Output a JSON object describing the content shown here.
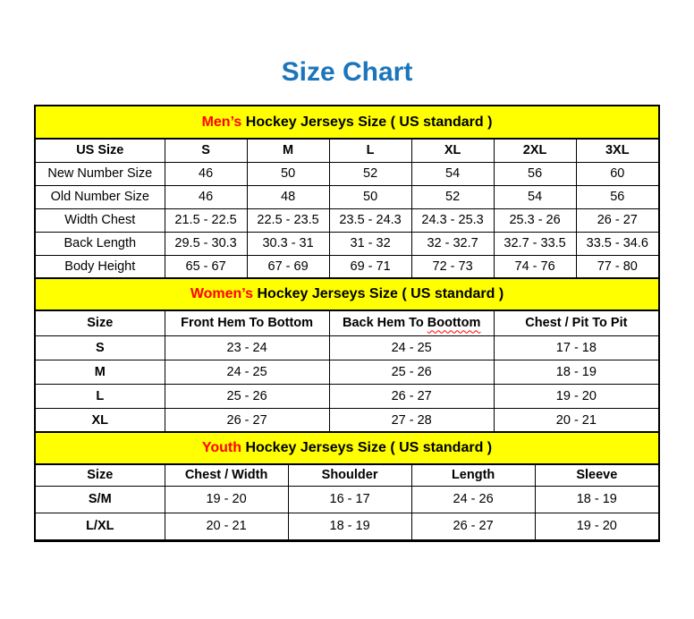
{
  "page": {
    "title": "Size Chart"
  },
  "colors": {
    "title_blue": "#1b75bc",
    "band_yellow": "#ffff00",
    "accent_red": "#ff0000",
    "border_black": "#000000"
  },
  "tables": [
    {
      "id": "mens",
      "band": {
        "highlight": "Men’s",
        "rest": " Hockey Jerseys Size ( US standard )"
      },
      "columns": [
        {
          "label": "US Size"
        },
        {
          "label": "S"
        },
        {
          "label": "M"
        },
        {
          "label": "L"
        },
        {
          "label": "XL"
        },
        {
          "label": "2XL"
        },
        {
          "label": "3XL"
        }
      ],
      "col_widths": [
        "20.7%",
        "13.22%",
        "13.22%",
        "13.22%",
        "13.22%",
        "13.22%",
        "13.2%"
      ],
      "rows": [
        [
          "New Number Size",
          "46",
          "50",
          "52",
          "54",
          "56",
          "60"
        ],
        [
          "Old Number Size",
          "46",
          "48",
          "50",
          "52",
          "54",
          "56"
        ],
        [
          "Width Chest",
          "21.5 - 22.5",
          "22.5 - 23.5",
          "23.5 - 24.3",
          "24.3 - 25.3",
          "25.3 - 26",
          "26 - 27"
        ],
        [
          "Back Length",
          "29.5 - 30.3",
          "30.3 - 31",
          "31 - 32",
          "32 - 32.7",
          "32.7 - 33.5",
          "33.5 - 34.6"
        ],
        [
          "Body Height",
          "65 - 67",
          "67 - 69",
          "69 - 71",
          "72 - 73",
          "74 - 76",
          "77 - 80"
        ]
      ]
    },
    {
      "id": "womens",
      "band": {
        "highlight": "Women’s",
        "rest": " Hockey Jerseys Size ( US standard )"
      },
      "columns": [
        {
          "label": "Size"
        },
        {
          "label": "Front Hem To Bottom"
        },
        {
          "label": "Back Hem To ",
          "squiggle": "Boottom"
        },
        {
          "label": "Chest / Pit To Pit"
        }
      ],
      "col_widths": [
        "20.7%",
        "26.45%",
        "26.45%",
        "26.4%"
      ],
      "rows": [
        [
          "S",
          "23 - 24",
          "24 - 25",
          "17 - 18"
        ],
        [
          "M",
          "24 - 25",
          "25 - 26",
          "18 - 19"
        ],
        [
          "L",
          "25 - 26",
          "26 - 27",
          "19 - 20"
        ],
        [
          "XL",
          "26 - 27",
          "27 - 28",
          "20 - 21"
        ]
      ]
    },
    {
      "id": "youth",
      "band": {
        "highlight": "Youth",
        "rest": " Hockey Jerseys Size ( US standard )"
      },
      "columns": [
        {
          "label": "Size"
        },
        {
          "label": "Chest / Width"
        },
        {
          "label": "Shoulder"
        },
        {
          "label": "Length"
        },
        {
          "label": "Sleeve"
        }
      ],
      "col_widths": [
        "20.7%",
        "19.83%",
        "19.83%",
        "19.83%",
        "19.81%"
      ],
      "rows": [
        [
          "S/M",
          "19 - 20",
          "16 - 17",
          "24 - 26",
          "18 - 19"
        ],
        [
          "L/XL",
          "20 - 21",
          "18 - 19",
          "26 - 27",
          "19 - 20"
        ]
      ]
    }
  ]
}
